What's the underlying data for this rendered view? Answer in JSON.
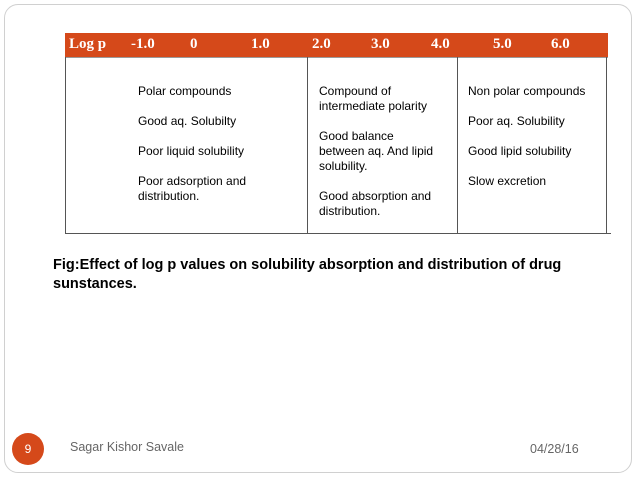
{
  "header": {
    "label": "Log p",
    "scale": [
      "-1.0",
      "0",
      "1.0",
      "2.0",
      "3.0",
      "4.0",
      "5.0",
      "6.0"
    ]
  },
  "columns": [
    {
      "lines": [
        "Polar compounds",
        "Good aq. Solubilty",
        "Poor liquid solubility",
        "Poor adsorption and\ndistribution."
      ]
    },
    {
      "lines": [
        "Compound of\nintermediate polarity",
        "Good balance\nbetween aq. And lipid\nsolubility.",
        "Good absorption and\ndistribution."
      ]
    },
    {
      "lines": [
        "Non polar compounds",
        "Poor aq. Solubility",
        "Good lipid solubility",
        "Slow excretion"
      ]
    }
  ],
  "caption": "Fig:Effect of log p values on solubility absorption and distribution of drug sunstances.",
  "footer": {
    "page_number": "9",
    "author": "Sagar Kishor Savale",
    "date": "04/28/16"
  },
  "colors": {
    "accent": "#d5491a"
  }
}
